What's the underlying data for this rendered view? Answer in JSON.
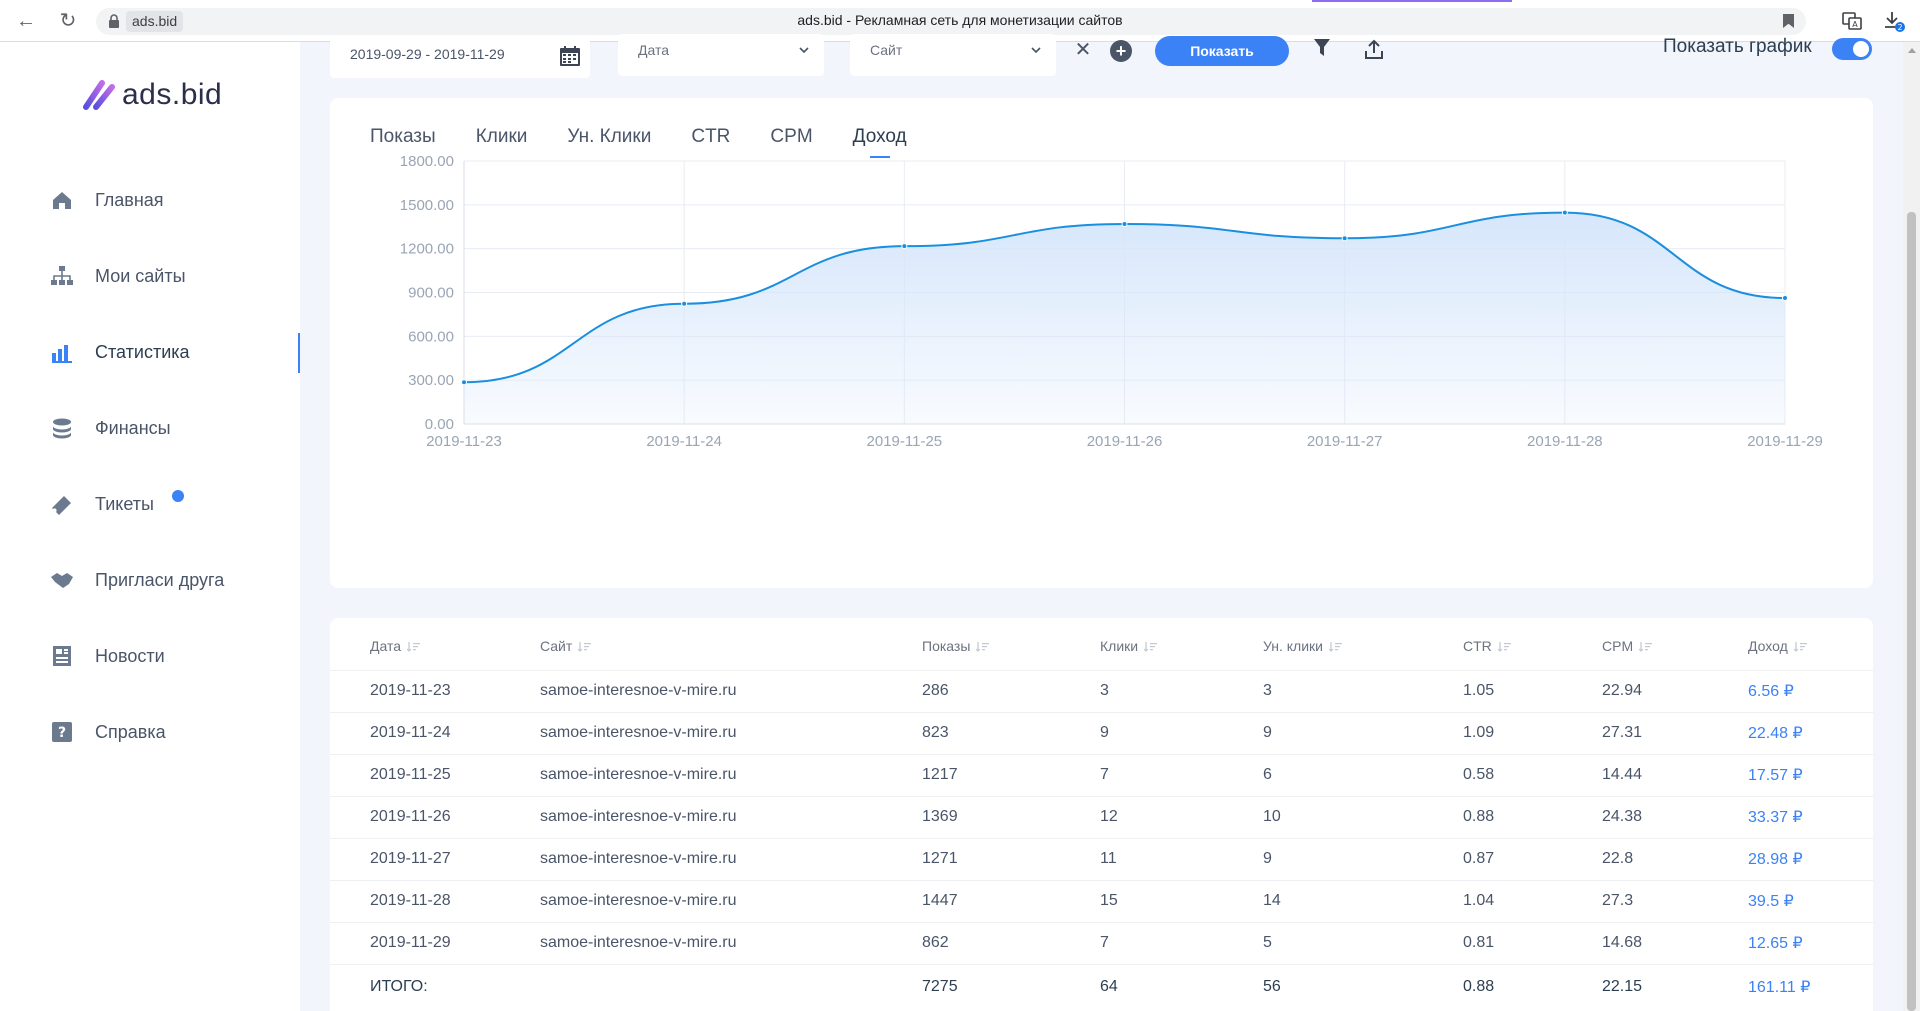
{
  "browser": {
    "domain": "ads.bid",
    "title": "ads.bid - Рекламная сеть для монетизации сайтов",
    "download_badge": "2"
  },
  "logo": {
    "text": "ads.bid"
  },
  "sidebar": {
    "items": [
      {
        "label": "Главная",
        "icon": "home-icon"
      },
      {
        "label": "Мои сайты",
        "icon": "sitemap-icon"
      },
      {
        "label": "Статистика",
        "icon": "bar-chart-icon",
        "active": true
      },
      {
        "label": "Финансы",
        "icon": "coins-icon"
      },
      {
        "label": "Тикеты",
        "icon": "ticket-icon",
        "badge": true
      },
      {
        "label": "Пригласи друга",
        "icon": "handshake-icon"
      },
      {
        "label": "Новости",
        "icon": "newspaper-icon"
      },
      {
        "label": "Справка",
        "icon": "help-icon"
      }
    ]
  },
  "filters": {
    "date_range": "2019-09-29 - 2019-11-29",
    "group_select": "Дата",
    "site_select": "Сайт",
    "show_button": "Показать",
    "show_chart_label": "Показать график",
    "show_chart_on": true
  },
  "tabs": [
    "Показы",
    "Клики",
    "Ун. Клики",
    "CTR",
    "CPM",
    "Доход"
  ],
  "active_tab": "Доход",
  "chart_data": {
    "type": "area",
    "x": [
      "2019-11-23",
      "2019-11-24",
      "2019-11-25",
      "2019-11-26",
      "2019-11-27",
      "2019-11-28",
      "2019-11-29"
    ],
    "series": [
      {
        "values": [
          286,
          823,
          1217,
          1369,
          1271,
          1447,
          862
        ]
      }
    ],
    "y_ticks": [
      "0.00",
      "300.00",
      "600.00",
      "900.00",
      "1200.00",
      "1500.00",
      "1800.00"
    ],
    "ylim": [
      0,
      1800
    ],
    "grid": true,
    "colors": {
      "line": "#1a8fe0",
      "fill": "#d6e6fb"
    }
  },
  "table": {
    "headers": [
      "Дата",
      "Сайт",
      "Показы",
      "Клики",
      "Ун. клики",
      "CTR",
      "CPM",
      "Доход"
    ],
    "currency": "₽",
    "rows": [
      [
        "2019-11-23",
        "samoe-interesnoe-v-mire.ru",
        "286",
        "3",
        "3",
        "1.05",
        "22.94",
        "6.56"
      ],
      [
        "2019-11-24",
        "samoe-interesnoe-v-mire.ru",
        "823",
        "9",
        "9",
        "1.09",
        "27.31",
        "22.48"
      ],
      [
        "2019-11-25",
        "samoe-interesnoe-v-mire.ru",
        "1217",
        "7",
        "6",
        "0.58",
        "14.44",
        "17.57"
      ],
      [
        "2019-11-26",
        "samoe-interesnoe-v-mire.ru",
        "1369",
        "12",
        "10",
        "0.88",
        "24.38",
        "33.37"
      ],
      [
        "2019-11-27",
        "samoe-interesnoe-v-mire.ru",
        "1271",
        "11",
        "9",
        "0.87",
        "22.8",
        "28.98"
      ],
      [
        "2019-11-28",
        "samoe-interesnoe-v-mire.ru",
        "1447",
        "15",
        "14",
        "1.04",
        "27.3",
        "39.5"
      ],
      [
        "2019-11-29",
        "samoe-interesnoe-v-mire.ru",
        "862",
        "7",
        "5",
        "0.81",
        "14.68",
        "12.65"
      ]
    ],
    "total": {
      "label": "ИТОГО:",
      "values": [
        "7275",
        "64",
        "56",
        "0.88",
        "22.15",
        "161.11"
      ]
    }
  }
}
